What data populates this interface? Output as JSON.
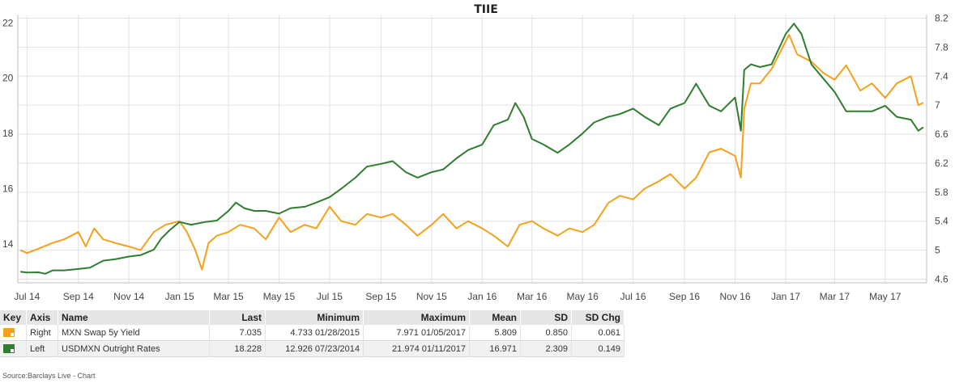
{
  "chart_data": {
    "type": "line",
    "title": "TIIE",
    "x_tick_labels": [
      "Jul 14",
      "Sep 14",
      "Nov 14",
      "Jan 15",
      "Mar 15",
      "May 15",
      "Jul 15",
      "Sep 15",
      "Nov 15",
      "Jan 16",
      "Mar 16",
      "May 16",
      "Jul 16",
      "Sep 16",
      "Nov 16",
      "Jan 17",
      "Mar 17",
      "May 17"
    ],
    "x_tick_dates": [
      "2014-07-01",
      "2014-09-01",
      "2014-11-01",
      "2015-01-01",
      "2015-03-01",
      "2015-05-01",
      "2015-07-01",
      "2015-09-01",
      "2015-11-01",
      "2016-01-01",
      "2016-03-01",
      "2016-05-01",
      "2016-07-01",
      "2016-09-01",
      "2016-11-01",
      "2017-01-01",
      "2017-03-01",
      "2017-05-01"
    ],
    "left_axis": {
      "ticks": [
        "14",
        "16",
        "18",
        "20",
        "22"
      ],
      "ylim": [
        12.6,
        22.3
      ]
    },
    "right_axis": {
      "ticks": [
        "4.6",
        "5",
        "5.4",
        "5.8",
        "6.2",
        "6.6",
        "7",
        "7.4",
        "7.8",
        "8.2"
      ],
      "ylim": [
        4.55,
        8.25
      ]
    },
    "grid": true,
    "series": [
      {
        "name": "MXN Swap 5y Yield",
        "axis": "right",
        "color": "#f4a11c",
        "x": [
          "2014-06-23",
          "2014-07-01",
          "2014-07-15",
          "2014-08-01",
          "2014-08-15",
          "2014-09-01",
          "2014-09-10",
          "2014-09-20",
          "2014-10-01",
          "2014-10-15",
          "2014-11-01",
          "2014-11-15",
          "2014-12-01",
          "2014-12-15",
          "2015-01-01",
          "2015-01-10",
          "2015-01-20",
          "2015-01-28",
          "2015-02-05",
          "2015-02-15",
          "2015-03-01",
          "2015-03-15",
          "2015-04-01",
          "2015-04-15",
          "2015-05-01",
          "2015-05-15",
          "2015-06-01",
          "2015-06-15",
          "2015-07-01",
          "2015-07-15",
          "2015-08-01",
          "2015-08-15",
          "2015-09-01",
          "2015-09-15",
          "2015-10-01",
          "2015-10-15",
          "2015-11-01",
          "2015-11-15",
          "2015-12-01",
          "2015-12-15",
          "2016-01-01",
          "2016-01-15",
          "2016-02-01",
          "2016-02-15",
          "2016-03-01",
          "2016-03-15",
          "2016-04-01",
          "2016-04-15",
          "2016-05-01",
          "2016-05-15",
          "2016-06-01",
          "2016-06-15",
          "2016-07-01",
          "2016-07-15",
          "2016-08-01",
          "2016-08-15",
          "2016-09-01",
          "2016-09-15",
          "2016-10-01",
          "2016-10-15",
          "2016-11-01",
          "2016-11-08",
          "2016-11-12",
          "2016-11-20",
          "2016-12-01",
          "2016-12-15",
          "2017-01-05",
          "2017-01-15",
          "2017-02-01",
          "2017-02-15",
          "2017-03-01",
          "2017-03-15",
          "2017-04-01",
          "2017-04-15",
          "2017-05-01",
          "2017-05-15",
          "2017-06-01",
          "2017-06-10",
          "2017-06-16"
        ],
        "values": [
          5.0,
          4.96,
          5.02,
          5.1,
          5.15,
          5.25,
          5.05,
          5.3,
          5.15,
          5.1,
          5.05,
          5.0,
          5.25,
          5.35,
          5.4,
          5.25,
          5.0,
          4.733,
          5.1,
          5.2,
          5.25,
          5.35,
          5.3,
          5.15,
          5.45,
          5.25,
          5.35,
          5.3,
          5.6,
          5.4,
          5.35,
          5.5,
          5.45,
          5.5,
          5.35,
          5.2,
          5.35,
          5.5,
          5.3,
          5.4,
          5.3,
          5.2,
          5.05,
          5.35,
          5.4,
          5.3,
          5.2,
          5.3,
          5.25,
          5.35,
          5.65,
          5.75,
          5.7,
          5.85,
          5.95,
          6.05,
          5.85,
          6.0,
          6.35,
          6.4,
          6.3,
          6.0,
          6.95,
          7.3,
          7.3,
          7.5,
          7.971,
          7.7,
          7.6,
          7.45,
          7.35,
          7.55,
          7.2,
          7.3,
          7.1,
          7.3,
          7.4,
          7.0,
          7.035
        ]
      },
      {
        "name": "USDMXN Outright Rates",
        "axis": "left",
        "color": "#2f7d2f",
        "x": [
          "2014-06-23",
          "2014-07-01",
          "2014-07-15",
          "2014-07-23",
          "2014-08-01",
          "2014-08-15",
          "2014-09-01",
          "2014-09-15",
          "2014-10-01",
          "2014-10-15",
          "2014-11-01",
          "2014-11-15",
          "2014-12-01",
          "2014-12-10",
          "2014-12-20",
          "2015-01-01",
          "2015-01-15",
          "2015-02-01",
          "2015-02-15",
          "2015-03-01",
          "2015-03-10",
          "2015-03-20",
          "2015-04-01",
          "2015-04-15",
          "2015-05-01",
          "2015-05-15",
          "2015-06-01",
          "2015-06-15",
          "2015-07-01",
          "2015-07-15",
          "2015-08-01",
          "2015-08-15",
          "2015-09-01",
          "2015-09-15",
          "2015-10-01",
          "2015-10-15",
          "2015-11-01",
          "2015-11-15",
          "2015-12-01",
          "2015-12-15",
          "2016-01-01",
          "2016-01-15",
          "2016-02-01",
          "2016-02-10",
          "2016-02-20",
          "2016-03-01",
          "2016-03-15",
          "2016-04-01",
          "2016-04-15",
          "2016-05-01",
          "2016-05-15",
          "2016-06-01",
          "2016-06-15",
          "2016-07-01",
          "2016-07-15",
          "2016-08-01",
          "2016-08-15",
          "2016-09-01",
          "2016-09-15",
          "2016-10-01",
          "2016-10-15",
          "2016-11-01",
          "2016-11-08",
          "2016-11-12",
          "2016-11-20",
          "2016-12-01",
          "2016-12-15",
          "2017-01-01",
          "2017-01-11",
          "2017-01-20",
          "2017-02-01",
          "2017-02-15",
          "2017-03-01",
          "2017-03-15",
          "2017-04-01",
          "2017-04-15",
          "2017-05-01",
          "2017-05-15",
          "2017-06-01",
          "2017-06-10",
          "2017-06-16"
        ],
        "values": [
          13.0,
          12.97,
          12.98,
          12.926,
          13.05,
          13.05,
          13.1,
          13.15,
          13.4,
          13.45,
          13.55,
          13.6,
          13.8,
          14.2,
          14.5,
          14.8,
          14.7,
          14.8,
          14.85,
          15.2,
          15.5,
          15.3,
          15.2,
          15.2,
          15.1,
          15.3,
          15.35,
          15.5,
          15.7,
          16.0,
          16.4,
          16.8,
          16.9,
          17.0,
          16.6,
          16.4,
          16.6,
          16.7,
          17.1,
          17.4,
          17.6,
          18.3,
          18.5,
          19.1,
          18.6,
          17.8,
          17.6,
          17.3,
          17.6,
          18.0,
          18.4,
          18.6,
          18.7,
          18.9,
          18.6,
          18.3,
          18.9,
          19.1,
          19.8,
          19.0,
          18.8,
          19.3,
          18.1,
          20.3,
          20.5,
          20.4,
          20.5,
          21.6,
          21.974,
          21.6,
          20.5,
          20.0,
          19.5,
          18.8,
          18.8,
          18.8,
          19.0,
          18.6,
          18.5,
          18.1,
          18.228
        ]
      }
    ]
  },
  "table": {
    "headers": {
      "key": "Key",
      "axis": "Axis",
      "name": "Name",
      "last": "Last",
      "minimum": "Minimum",
      "maximum": "Maximum",
      "mean": "Mean",
      "sd": "SD",
      "sdchg": "SD Chg"
    },
    "rows": [
      {
        "color": "#f4a11c",
        "axis": "Right",
        "name": "MXN Swap 5y Yield",
        "last": "7.035",
        "minimum": "4.733 01/28/2015",
        "maximum": "7.971 01/05/2017",
        "mean": "5.809",
        "sd": "0.850",
        "sdchg": "0.061"
      },
      {
        "color": "#2f7d2f",
        "axis": "Left",
        "name": "USDMXN Outright Rates",
        "last": "18.228",
        "minimum": "12.926 07/23/2014",
        "maximum": "21.974 01/11/2017",
        "mean": "16.971",
        "sd": "2.309",
        "sdchg": "0.149"
      }
    ]
  },
  "source_note": "Source:Barclays Live - Chart"
}
